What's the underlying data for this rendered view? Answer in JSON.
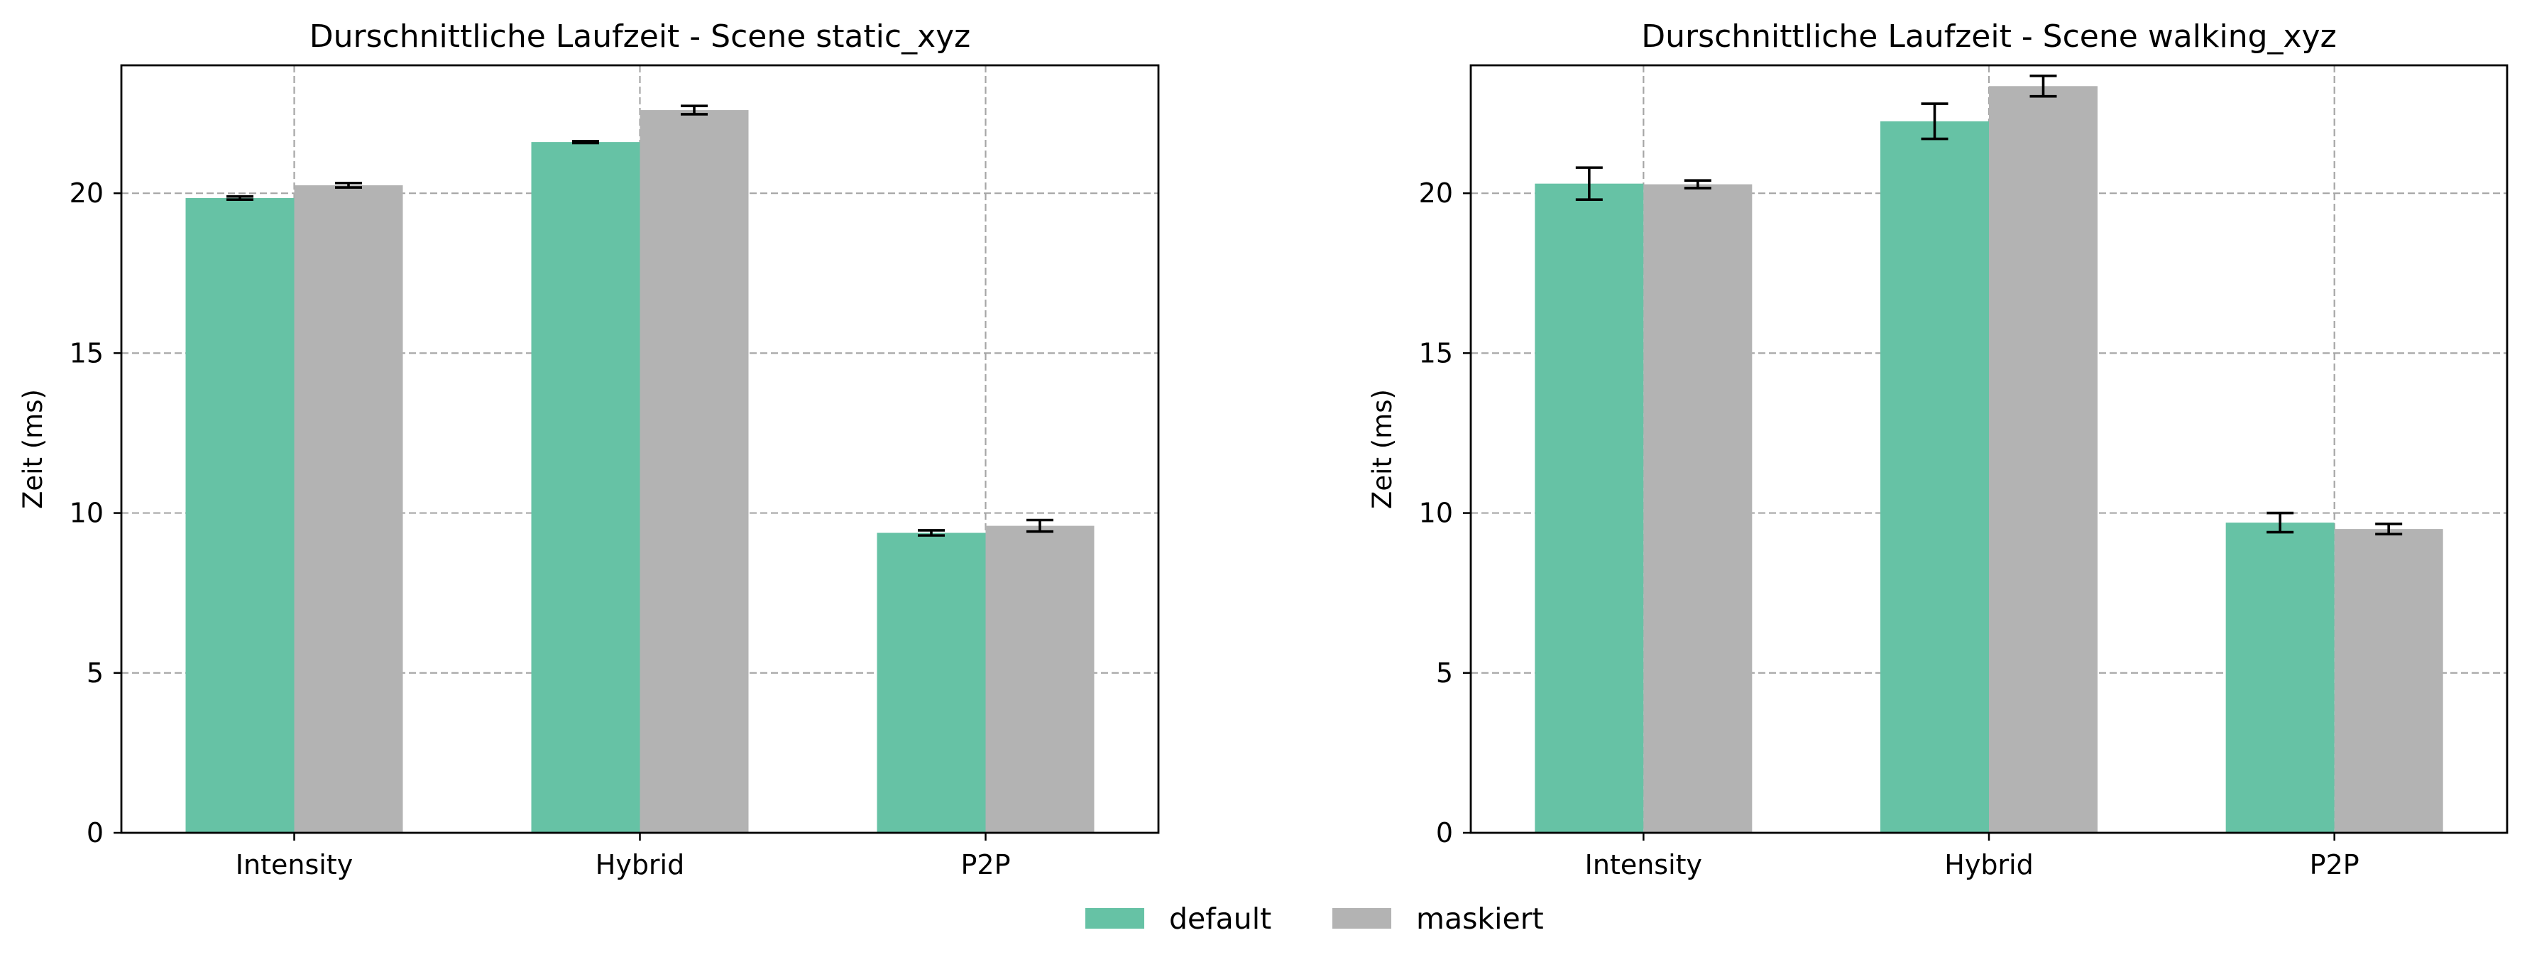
{
  "chart_data": [
    {
      "type": "bar",
      "title": "Durschnittliche Laufzeit - Scene static_xyz",
      "xlabel": "",
      "ylabel": "Zeit (ms)",
      "ylim": [
        0,
        24
      ],
      "yticks": [
        0,
        5,
        10,
        15,
        20
      ],
      "grid": true,
      "categories": [
        "Intensity",
        "Hybrid",
        "P2P"
      ],
      "series": [
        {
          "name": "default",
          "color": "#66c2a5",
          "values": [
            19.85,
            21.6,
            9.38
          ],
          "errors": [
            0.05,
            0.03,
            0.08
          ]
        },
        {
          "name": "maskiert",
          "color": "#b3b3b3",
          "values": [
            20.25,
            22.6,
            9.6
          ],
          "errors": [
            0.07,
            0.13,
            0.18
          ]
        }
      ]
    },
    {
      "type": "bar",
      "title": "Durschnittliche Laufzeit - Scene walking_xyz",
      "xlabel": "",
      "ylabel": "Zeit (ms)",
      "ylim": [
        0,
        24
      ],
      "yticks": [
        0,
        5,
        10,
        15,
        20
      ],
      "grid": true,
      "categories": [
        "Intensity",
        "Hybrid",
        "P2P"
      ],
      "series": [
        {
          "name": "default",
          "color": "#66c2a5",
          "values": [
            20.3,
            22.25,
            9.7
          ],
          "errors": [
            0.5,
            0.55,
            0.3
          ]
        },
        {
          "name": "maskiert",
          "color": "#b3b3b3",
          "values": [
            20.28,
            23.35,
            9.5
          ],
          "errors": [
            0.12,
            0.32,
            0.16
          ]
        }
      ]
    }
  ],
  "legend": {
    "placement": "bottom-center",
    "items": [
      {
        "label": "default",
        "color": "#66c2a5"
      },
      {
        "label": "maskiert",
        "color": "#b3b3b3"
      }
    ]
  }
}
